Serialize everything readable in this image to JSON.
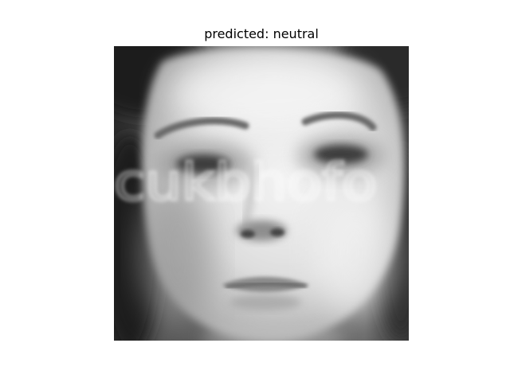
{
  "figure": {
    "title": "predicted: neutral"
  },
  "image": {
    "kind": "grayscale face photo",
    "watermark_text": "cukbhofo"
  }
}
